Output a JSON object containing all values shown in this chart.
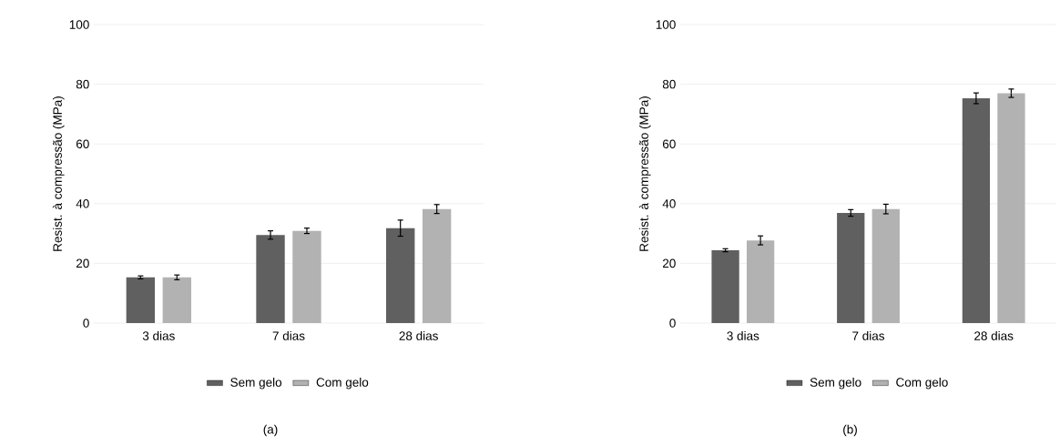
{
  "chart_data": [
    {
      "type": "bar",
      "ylabel": "Resist. à compressão (MPa)",
      "categories": [
        "3 dias",
        "7 dias",
        "28 dias"
      ],
      "series": [
        {
          "name": "Sem gelo",
          "color": "#606060",
          "values": [
            15.3,
            29.5,
            31.8
          ],
          "errors": [
            0.5,
            1.4,
            2.7
          ]
        },
        {
          "name": "Com gelo",
          "color": "#b2b2b2",
          "values": [
            15.3,
            30.9,
            38.2
          ],
          "errors": [
            0.8,
            0.9,
            1.5
          ]
        }
      ],
      "ylim": [
        0,
        100
      ],
      "yticks": [
        0,
        20,
        40,
        60,
        80,
        100
      ],
      "grid": "y",
      "legend": "bottom",
      "annotations": [
        "(a)"
      ]
    },
    {
      "type": "bar",
      "ylabel": "Resist. à compressão (MPa)",
      "categories": [
        "3 dias",
        "7 dias",
        "28 dias"
      ],
      "series": [
        {
          "name": "Sem gelo",
          "color": "#606060",
          "values": [
            24.4,
            36.9,
            75.3
          ],
          "errors": [
            0.5,
            1.1,
            1.8
          ]
        },
        {
          "name": "Com gelo",
          "color": "#b2b2b2",
          "values": [
            27.7,
            38.2,
            77.0
          ],
          "errors": [
            1.5,
            1.6,
            1.4
          ]
        }
      ],
      "ylim": [
        0,
        100
      ],
      "yticks": [
        0,
        20,
        40,
        60,
        80,
        100
      ],
      "grid": "y",
      "legend": "bottom",
      "annotations": [
        "(b)"
      ]
    }
  ]
}
